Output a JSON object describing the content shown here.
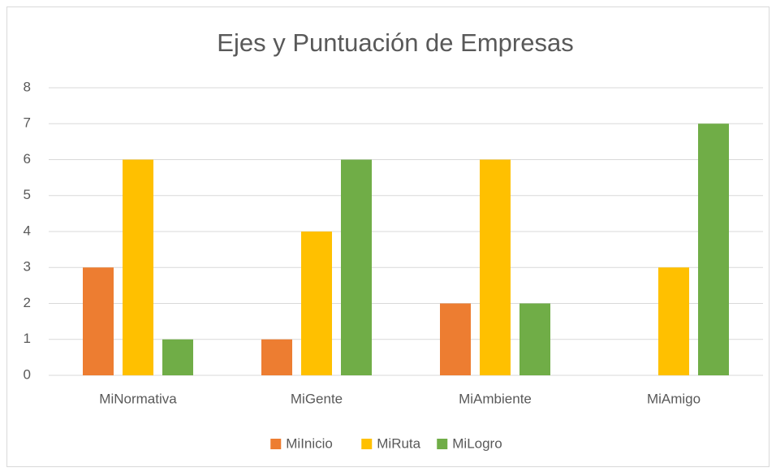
{
  "chart_data": {
    "type": "bar",
    "title": "Ejes y Puntuación de Empresas",
    "categories": [
      "MiNormativa",
      "MiGente",
      "MiAmbiente",
      "MiAmigo"
    ],
    "series": [
      {
        "name": "MiInicio",
        "color": "#ed7d31",
        "values": [
          3,
          1,
          2,
          0
        ]
      },
      {
        "name": "MiRuta",
        "color": "#ffc000",
        "values": [
          6,
          4,
          6,
          3
        ]
      },
      {
        "name": "MiLogro",
        "color": "#70ad47",
        "values": [
          1,
          6,
          2,
          7
        ]
      }
    ],
    "ylim": [
      0,
      8
    ],
    "yticks": [
      0,
      1,
      2,
      3,
      4,
      5,
      6,
      7,
      8
    ],
    "grid": true,
    "legend": "bottom"
  }
}
